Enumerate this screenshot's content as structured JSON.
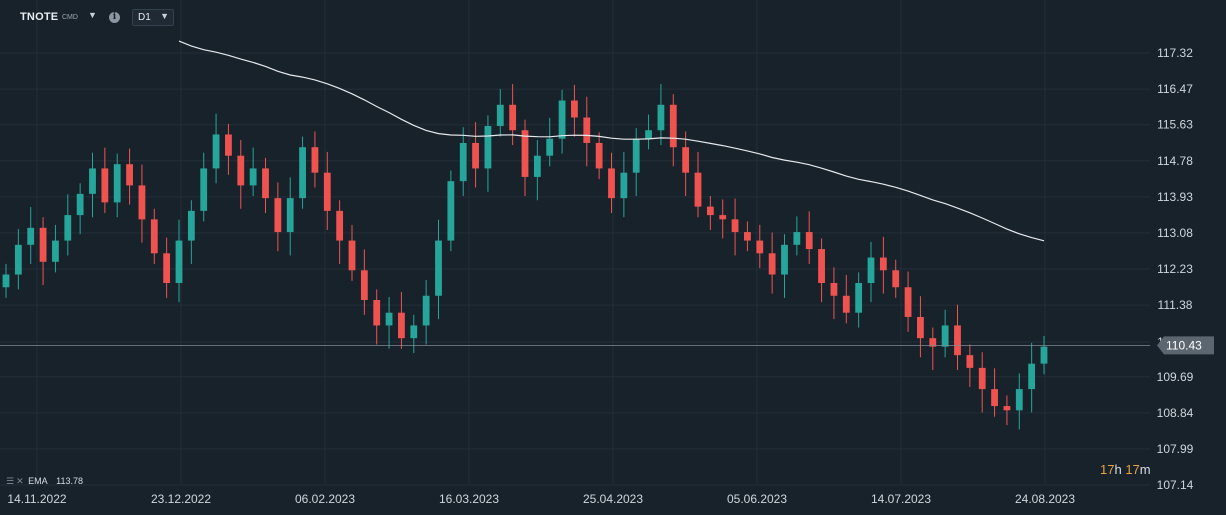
{
  "toolbar": {
    "symbol": "TNOTE",
    "symbol_type": "CMD",
    "timeframe": "D1",
    "info_icon": "info-icon",
    "caret_icon": "chevron-down-icon"
  },
  "legend": {
    "indicator": "EMA",
    "value": "113.78",
    "icons": [
      "settings-icon",
      "close-icon"
    ]
  },
  "countdown": {
    "hours": "17",
    "h_unit": "h",
    "minutes": "17",
    "m_unit": "m"
  },
  "colors": {
    "background": "#18222b",
    "up": "#26a69a",
    "down": "#ef5350",
    "ema": "#e6e9ec",
    "price_line": "#7f8a94",
    "grid": "#222e38",
    "countdown": "#e8a33d"
  },
  "chart_data": {
    "type": "candlestick",
    "y_ticks": [
      "117.32",
      "116.47",
      "115.63",
      "114.78",
      "113.93",
      "113.08",
      "112.23",
      "111.38",
      "110.51",
      "109.69",
      "108.84",
      "107.99",
      "107.14"
    ],
    "x_ticks": [
      "14.11.2022",
      "23.12.2022",
      "06.02.2023",
      "16.03.2023",
      "25.04.2023",
      "05.06.2023",
      "14.07.2023",
      "24.08.2023"
    ],
    "ylim": [
      107.14,
      117.32
    ],
    "current_price": "110.43",
    "ema_label": "EMA",
    "ema_value": 113.78,
    "grid": true,
    "close": [
      112.1,
      112.8,
      113.2,
      112.4,
      112.9,
      113.5,
      114.0,
      114.6,
      113.8,
      114.7,
      114.2,
      113.4,
      112.6,
      111.9,
      112.9,
      113.6,
      114.6,
      115.4,
      114.9,
      114.2,
      114.6,
      113.9,
      113.1,
      113.9,
      115.1,
      114.5,
      113.6,
      112.9,
      112.2,
      111.5,
      110.9,
      111.2,
      110.6,
      110.9,
      111.6,
      112.9,
      114.3,
      115.2,
      114.6,
      115.6,
      116.1,
      115.5,
      114.4,
      114.9,
      115.3,
      116.2,
      115.8,
      115.2,
      114.6,
      113.9,
      114.5,
      115.3,
      115.5,
      116.1,
      115.1,
      114.5,
      113.7,
      113.5,
      113.4,
      113.1,
      112.9,
      112.6,
      112.1,
      112.8,
      113.1,
      112.7,
      111.9,
      111.6,
      111.2,
      111.9,
      112.5,
      112.2,
      111.8,
      111.1,
      110.6,
      110.4,
      110.9,
      110.2,
      109.9,
      109.4,
      109.0,
      108.9,
      109.4,
      110.0,
      110.4
    ],
    "count": 85
  }
}
